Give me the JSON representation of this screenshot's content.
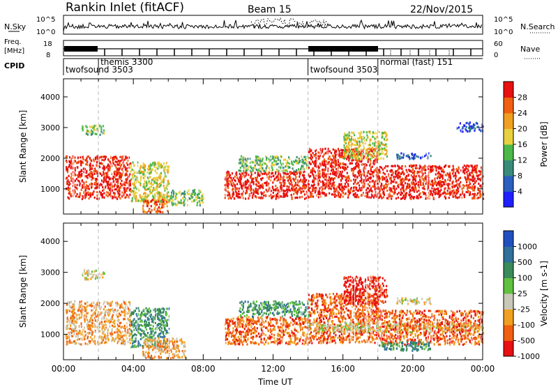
{
  "header": {
    "station": "Rankin Inlet (fitACF)",
    "beam": "Beam 15",
    "date": "22/Nov/2015"
  },
  "strip_labels": {
    "nsky": "N.Sky",
    "nsky_ticks": [
      "10^5",
      "10^0"
    ],
    "nsearch": "N.Search",
    "nsearch_ticks": [
      "10^5",
      "10^0"
    ],
    "freq": "Freq.",
    "freq_unit": "[MHz]",
    "freq_ticks": [
      "18",
      "8"
    ],
    "nave": "Nave",
    "nave_ticks": [
      "60",
      "0"
    ],
    "cpid": "CPID",
    "cpid_segments": [
      {
        "label": "twofsound 3503",
        "start_h": 0.0
      },
      {
        "label": "themis 3300",
        "start_h": 2.0
      },
      {
        "label": "twofsound 3503",
        "start_h": 14.0
      },
      {
        "label": "normal (fast) 151",
        "start_h": 18.0
      }
    ]
  },
  "chart_data": [
    {
      "type": "heatmap",
      "title": "",
      "xlabel": "",
      "ylabel": "Slant Range [km]",
      "xlim": [
        0,
        24
      ],
      "ylim": [
        180,
        4590
      ],
      "yticks": [
        1000,
        2000,
        3000,
        4000
      ],
      "colorbar": {
        "label": "Power [dB]",
        "ticks": [
          "4",
          "8",
          "12",
          "16",
          "20",
          "24",
          "28"
        ],
        "colors": [
          "#1f1fff",
          "#2a5fbf",
          "#3a8a7a",
          "#4cb84a",
          "#e8d040",
          "#f0a020",
          "#f06010",
          "#e81010"
        ]
      },
      "echo_regions": [
        {
          "t0": 0.1,
          "t1": 3.8,
          "r0": 700,
          "r1": 2100,
          "level": 7
        },
        {
          "t0": 3.8,
          "t1": 6.0,
          "r0": 600,
          "r1": 1900,
          "level": 4
        },
        {
          "t0": 4.5,
          "t1": 6.0,
          "r0": 250,
          "r1": 700,
          "level": 6
        },
        {
          "t0": 6.0,
          "t1": 8.0,
          "r0": 500,
          "r1": 1000,
          "level": 3
        },
        {
          "t0": 1.0,
          "t1": 2.3,
          "r0": 2800,
          "r1": 3100,
          "level": 3
        },
        {
          "t0": 9.2,
          "t1": 14.0,
          "r0": 700,
          "r1": 1600,
          "level": 7
        },
        {
          "t0": 10.0,
          "t1": 14.0,
          "r0": 1600,
          "r1": 2100,
          "level": 3
        },
        {
          "t0": 14.0,
          "t1": 18.0,
          "r0": 750,
          "r1": 2350,
          "level": 7
        },
        {
          "t0": 16.0,
          "t1": 18.5,
          "r0": 2000,
          "r1": 2900,
          "level": 4
        },
        {
          "t0": 18.0,
          "t1": 24.0,
          "r0": 700,
          "r1": 1800,
          "level": 7
        },
        {
          "t0": 19.0,
          "t1": 21.0,
          "r0": 2000,
          "r1": 2200,
          "level": 1
        },
        {
          "t0": 22.5,
          "t1": 24.0,
          "r0": 2900,
          "r1": 3200,
          "level": 1
        }
      ]
    },
    {
      "type": "heatmap",
      "title": "",
      "xlabel": "Time UT",
      "ylabel": "Slant Range [km]",
      "xlim": [
        0,
        24
      ],
      "ylim": [
        180,
        4590
      ],
      "yticks": [
        1000,
        2000,
        3000,
        4000
      ],
      "xtick_labels": [
        "00:00",
        "04:00",
        "08:00",
        "12:00",
        "16:00",
        "20:00",
        "00:00"
      ],
      "colorbar": {
        "label": "Velocity [m s-1]",
        "ticks": [
          "1000",
          "500",
          "100",
          "25",
          "-25",
          "-100",
          "-500",
          "-1000"
        ],
        "colors": [
          "#2050c0",
          "#30709a",
          "#3a8a5a",
          "#60c040",
          "#c8c8b8",
          "#f0a020",
          "#f06010",
          "#e81010"
        ]
      },
      "echo_regions": [
        {
          "t0": 0.1,
          "t1": 3.8,
          "r0": 700,
          "r1": 2100,
          "level": 5
        },
        {
          "t0": 3.8,
          "t1": 6.0,
          "r0": 600,
          "r1": 1900,
          "level": 2
        },
        {
          "t0": 4.5,
          "t1": 7.0,
          "r0": 250,
          "r1": 900,
          "level": 5
        },
        {
          "t0": 1.0,
          "t1": 2.3,
          "r0": 2800,
          "r1": 3100,
          "level": 4
        },
        {
          "t0": 9.2,
          "t1": 14.0,
          "r0": 700,
          "r1": 1600,
          "level": 6
        },
        {
          "t0": 10.0,
          "t1": 14.0,
          "r0": 1600,
          "r1": 2100,
          "level": 2
        },
        {
          "t0": 14.0,
          "t1": 18.0,
          "r0": 750,
          "r1": 2350,
          "level": 6
        },
        {
          "t0": 14.0,
          "t1": 24.0,
          "r0": 1100,
          "r1": 1400,
          "level": 4
        },
        {
          "t0": 16.0,
          "t1": 18.5,
          "r0": 2000,
          "r1": 2900,
          "level": 7
        },
        {
          "t0": 18.0,
          "t1": 24.0,
          "r0": 700,
          "r1": 1800,
          "level": 6
        },
        {
          "t0": 18.0,
          "t1": 21.0,
          "r0": 500,
          "r1": 800,
          "level": 2
        },
        {
          "t0": 19.0,
          "t1": 21.0,
          "r0": 2000,
          "r1": 2200,
          "level": 4
        }
      ]
    }
  ]
}
